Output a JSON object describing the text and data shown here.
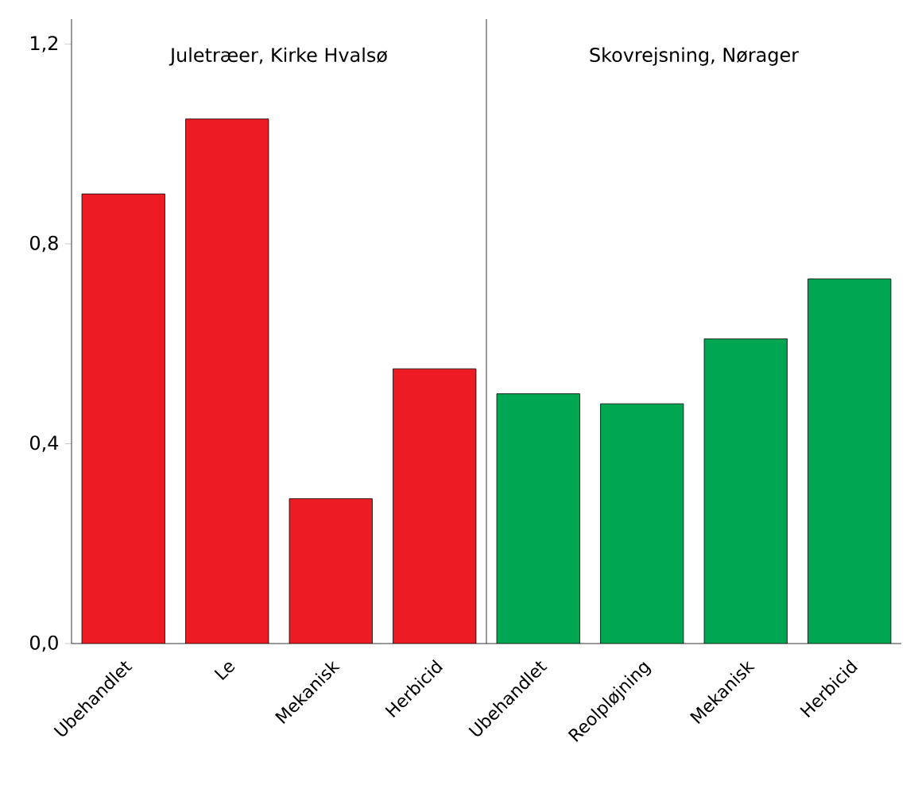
{
  "chart_data": {
    "type": "bar",
    "categories": [
      "Ubehandlet",
      "Le",
      "Mekanisk",
      "Herbicid",
      "Ubehandlet",
      "Reolpløjning",
      "Mekanisk",
      "Herbicid"
    ],
    "values": [
      0.9,
      1.05,
      0.29,
      0.55,
      0.5,
      0.48,
      0.61,
      0.73
    ],
    "colors": [
      "#ed1c24",
      "#ed1c24",
      "#ed1c24",
      "#ed1c24",
      "#00a651",
      "#00a651",
      "#00a651",
      "#00a651"
    ],
    "ylim": [
      0,
      1.25
    ],
    "yticks": [
      {
        "value": 0,
        "label": "0,0"
      },
      {
        "value": 0.4,
        "label": "0,4"
      },
      {
        "value": 0.8,
        "label": "0,8"
      },
      {
        "value": 1.2,
        "label": "1,2"
      }
    ],
    "annotations": [
      "Juletræer, Kirke Hvalsø",
      "Skovrejsning, Nørager"
    ],
    "grid": false
  }
}
